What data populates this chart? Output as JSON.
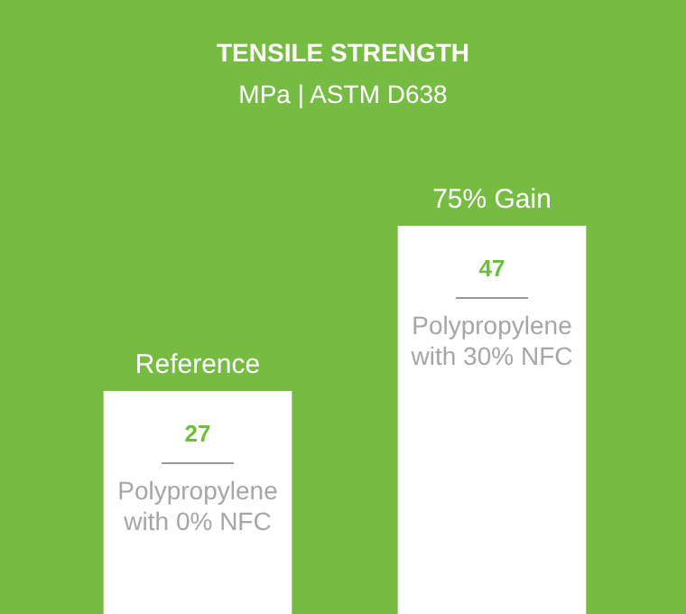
{
  "chart_data": {
    "type": "bar",
    "title": "TENSILE STRENGTH",
    "subtitle": "MPa | ASTM D638",
    "categories": [
      "Polypropylene with 0% NFC",
      "Polypropylene with 30% NFC"
    ],
    "values": [
      27,
      47
    ],
    "color": "#ffffff",
    "data_labels": true,
    "annotations": [
      {
        "text": "Reference",
        "x": "Polypropylene with 0% NFC",
        "y": 27
      },
      {
        "text": "75% Gain",
        "x": "Polypropylene with 30% NFC",
        "y": 47
      }
    ]
  }
}
